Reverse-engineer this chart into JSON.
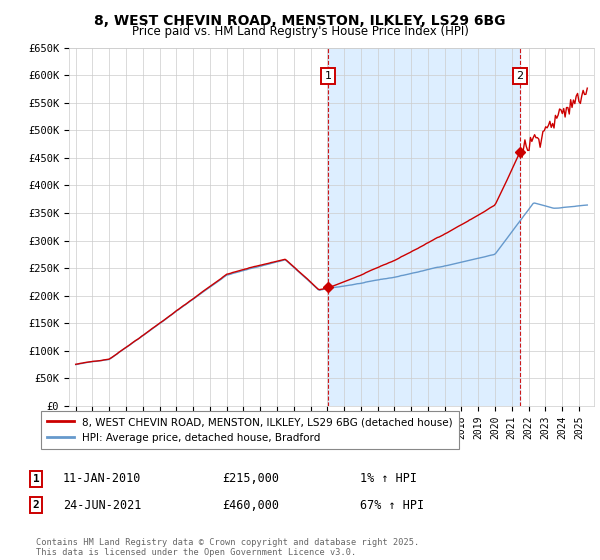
{
  "title_line1": "8, WEST CHEVIN ROAD, MENSTON, ILKLEY, LS29 6BG",
  "title_line2": "Price paid vs. HM Land Registry's House Price Index (HPI)",
  "background_color": "#ffffff",
  "plot_bg_color": "#ffffff",
  "plot_shade_color": "#ddeeff",
  "grid_color": "#cccccc",
  "line1_color": "#cc0000",
  "line2_color": "#6699cc",
  "sale1_date_x": 2010.04,
  "sale1_price": 215000,
  "sale2_date_x": 2021.48,
  "sale2_price": 460000,
  "ylim_max": 650000,
  "ylim_min": 0,
  "legend_label1": "8, WEST CHEVIN ROAD, MENSTON, ILKLEY, LS29 6BG (detached house)",
  "legend_label2": "HPI: Average price, detached house, Bradford",
  "annotation1_date": "11-JAN-2010",
  "annotation1_price": "£215,000",
  "annotation1_hpi": "1% ↑ HPI",
  "annotation2_date": "24-JUN-2021",
  "annotation2_price": "£460,000",
  "annotation2_hpi": "67% ↑ HPI",
  "footer": "Contains HM Land Registry data © Crown copyright and database right 2025.\nThis data is licensed under the Open Government Licence v3.0.",
  "ytick_labels": [
    "£0",
    "£50K",
    "£100K",
    "£150K",
    "£200K",
    "£250K",
    "£300K",
    "£350K",
    "£400K",
    "£450K",
    "£500K",
    "£550K",
    "£600K",
    "£650K"
  ],
  "ytick_values": [
    0,
    50000,
    100000,
    150000,
    200000,
    250000,
    300000,
    350000,
    400000,
    450000,
    500000,
    550000,
    600000,
    650000
  ],
  "xlim_left": 1994.6,
  "xlim_right": 2025.9
}
